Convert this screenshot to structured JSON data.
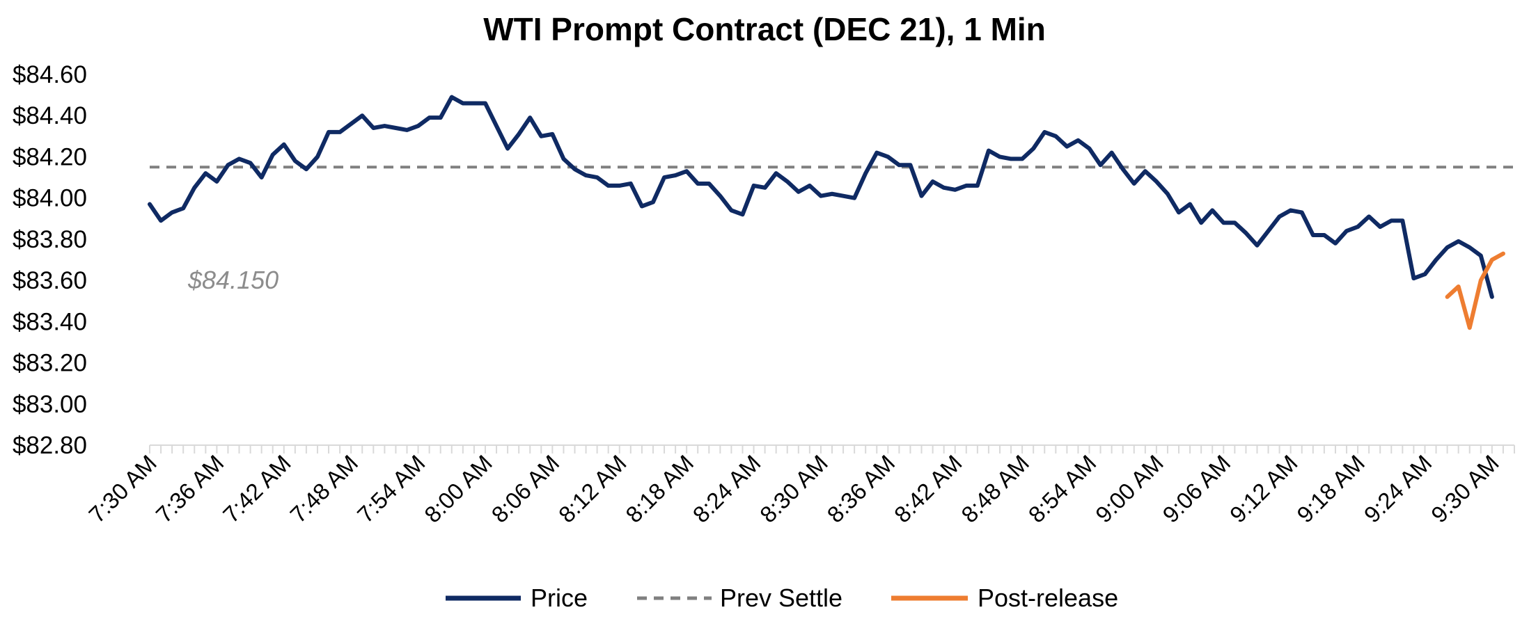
{
  "chart_data": {
    "type": "line",
    "title": "WTI Prompt Contract (DEC 21), 1 Min",
    "xlabel": "",
    "ylabel": "",
    "ylim": [
      82.8,
      84.6
    ],
    "ytick_values": [
      84.6,
      84.4,
      84.2,
      84.0,
      83.8,
      83.6,
      83.4,
      83.2,
      83.0,
      82.8
    ],
    "ytick_labels": [
      "$84.60",
      "$84.40",
      "$84.20",
      "$84.00",
      "$83.80",
      "$83.60",
      "$83.40",
      "$83.20",
      "$83.00",
      "$82.80"
    ],
    "x_count": 123,
    "xtick_labels": [
      {
        "index": 0,
        "label": "7:30 AM"
      },
      {
        "index": 6,
        "label": "7:36 AM"
      },
      {
        "index": 12,
        "label": "7:42 AM"
      },
      {
        "index": 18,
        "label": "7:48 AM"
      },
      {
        "index": 24,
        "label": "7:54 AM"
      },
      {
        "index": 30,
        "label": "8:00 AM"
      },
      {
        "index": 36,
        "label": "8:06 AM"
      },
      {
        "index": 42,
        "label": "8:12 AM"
      },
      {
        "index": 48,
        "label": "8:18 AM"
      },
      {
        "index": 54,
        "label": "8:24 AM"
      },
      {
        "index": 60,
        "label": "8:30 AM"
      },
      {
        "index": 66,
        "label": "8:36 AM"
      },
      {
        "index": 72,
        "label": "8:42 AM"
      },
      {
        "index": 78,
        "label": "8:48 AM"
      },
      {
        "index": 84,
        "label": "8:54 AM"
      },
      {
        "index": 90,
        "label": "9:00 AM"
      },
      {
        "index": 96,
        "label": "9:06 AM"
      },
      {
        "index": 102,
        "label": "9:12 AM"
      },
      {
        "index": 108,
        "label": "9:18 AM"
      },
      {
        "index": 114,
        "label": "9:24 AM"
      },
      {
        "index": 120,
        "label": "9:30 AM"
      }
    ],
    "series": [
      {
        "name": "Price",
        "color": "#0f2a63",
        "start_index": 0,
        "values": [
          83.97,
          83.89,
          83.93,
          83.95,
          84.05,
          84.12,
          84.08,
          84.16,
          84.19,
          84.17,
          84.1,
          84.21,
          84.26,
          84.18,
          84.14,
          84.2,
          84.32,
          84.32,
          84.36,
          84.4,
          84.34,
          84.35,
          84.34,
          84.33,
          84.35,
          84.39,
          84.39,
          84.49,
          84.46,
          84.46,
          84.46,
          84.35,
          84.24,
          84.31,
          84.39,
          84.3,
          84.31,
          84.19,
          84.14,
          84.11,
          84.1,
          84.06,
          84.06,
          84.07,
          83.96,
          83.98,
          84.1,
          84.11,
          84.13,
          84.07,
          84.07,
          84.01,
          83.94,
          83.92,
          84.06,
          84.05,
          84.12,
          84.08,
          84.03,
          84.06,
          84.01,
          84.02,
          84.01,
          84.0,
          84.12,
          84.22,
          84.2,
          84.16,
          84.16,
          84.01,
          84.08,
          84.05,
          84.04,
          84.06,
          84.06,
          84.23,
          84.2,
          84.19,
          84.19,
          84.24,
          84.32,
          84.3,
          84.25,
          84.28,
          84.24,
          84.16,
          84.22,
          84.14,
          84.07,
          84.13,
          84.08,
          84.02,
          83.93,
          83.97,
          83.88,
          83.94,
          83.88,
          83.88,
          83.83,
          83.77,
          83.84,
          83.91,
          83.94,
          83.93,
          83.82,
          83.82,
          83.78,
          83.84,
          83.86,
          83.91,
          83.86,
          83.89,
          83.89,
          83.61,
          83.63,
          83.7,
          83.76,
          83.79,
          83.76,
          83.72,
          83.52
        ]
      },
      {
        "name": "Prev Settle",
        "color": "#808080",
        "constant": 84.15
      },
      {
        "name": "Post-release",
        "color": "#ee7d31",
        "start_index": 116,
        "values": [
          83.52,
          83.57,
          83.37,
          83.6,
          83.7,
          83.73
        ]
      }
    ],
    "annotations": [
      {
        "text": "$84.150",
        "at_value": 83.6
      }
    ],
    "legend_position": "bottom-center"
  }
}
